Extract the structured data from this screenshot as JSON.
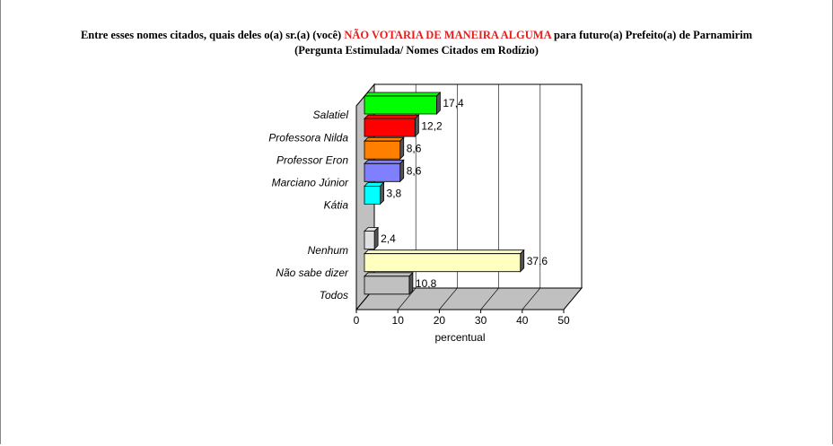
{
  "chart_data": {
    "type": "bar3d",
    "title": "Entre esses nomes citados, quais deles o(a) sr.(a) (você)",
    "title_highlight": "NÃO VOTARIA DE MANEIRA ALGUMA",
    "title_end": "para futuro(a) Prefeito(a) de Parnamirim",
    "subtitle": "(Pergunta Estimulada/ Nomes Citados em Rodízio)",
    "x_label": "percentual",
    "categories": [
      "Salatiel",
      "Professora Nilda",
      "Professor Eron",
      "Marciano Júnior",
      "Kátia",
      null,
      "Nenhum",
      "Não sabe dizer",
      "Todos"
    ],
    "values": [
      17.4,
      12.2,
      8.6,
      8.6,
      3.8,
      null,
      2.4,
      37.6,
      10.8
    ],
    "value_labels": [
      "17,4",
      "12,2",
      "8,6",
      "8,6",
      "3,8",
      null,
      "2,4",
      "37,6",
      "10,8"
    ],
    "colors": [
      "#00ff00",
      "#ff0000",
      "#ff8000",
      "#8080ff",
      "#00ffff",
      null,
      "#e0e0e0",
      "#ffffc0",
      "#c0c0c0"
    ],
    "xlim": [
      0,
      50
    ],
    "xticks": [
      0,
      10,
      20,
      30,
      40,
      50
    ],
    "grid": true
  }
}
